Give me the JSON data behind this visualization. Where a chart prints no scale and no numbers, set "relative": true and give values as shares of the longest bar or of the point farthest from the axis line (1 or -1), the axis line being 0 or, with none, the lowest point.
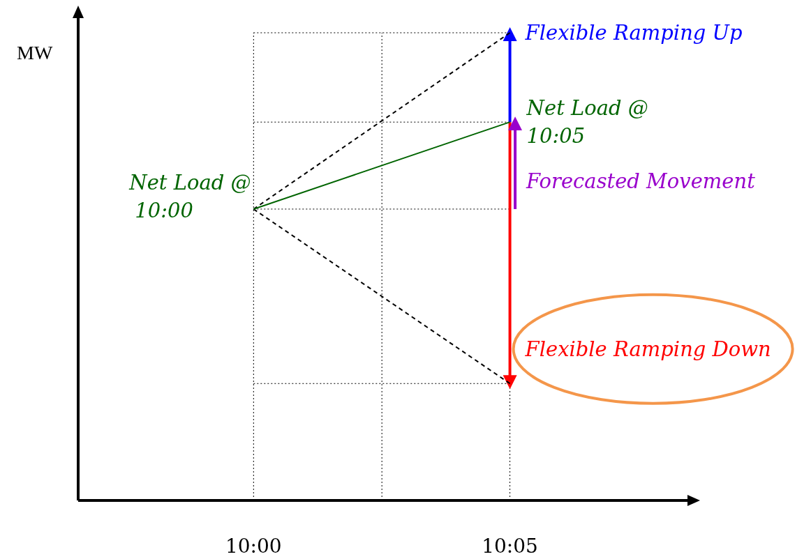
{
  "chart_data": {
    "type": "line",
    "relative": true,
    "ylabel": "MW",
    "tick_labels": "x",
    "grid": "x",
    "ref_lines": [
      {
        "axis": "y",
        "value": 1.0,
        "line_style": "dotted"
      },
      {
        "axis": "y",
        "value": 0.809,
        "line_style": "dotted"
      },
      {
        "axis": "y",
        "value": 0.623,
        "line_style": "dotted"
      },
      {
        "axis": "y",
        "value": 0.25,
        "line_style": "dotted"
      }
    ],
    "xlim": [
      9.943,
      10.141
    ],
    "xticks": [
      {
        "value": 10,
        "label": "10:00"
      },
      {
        "value": 10.0417,
        "label": null
      },
      {
        "value": 10.0833,
        "label": "10:05"
      }
    ],
    "series": [
      {
        "color": "#000000",
        "line_style": "dashed",
        "x": [
          10,
          10.0833
        ],
        "values": [
          0.623,
          1.0
        ]
      },
      {
        "color": "#000000",
        "line_style": "dashed",
        "x": [
          10,
          10.0833
        ],
        "values": [
          0.623,
          0.25
        ]
      },
      {
        "color": "#006400",
        "line_style": "solid",
        "x": [
          10,
          10.0833
        ],
        "values": [
          0.623,
          0.809
        ]
      },
      {
        "name": "Flexible Ramping Up",
        "color": "#0000ff",
        "line_style": "solid",
        "x": [
          10.0833,
          10.0833
        ],
        "values": [
          0.809,
          1.0
        ]
      },
      {
        "name": "Flexible Ramping Down",
        "color": "#ff0000",
        "line_style": "solid",
        "x": [
          10.0833,
          10.0833
        ],
        "values": [
          0.809,
          0.25
        ]
      },
      {
        "name": "Forecasted Movement",
        "color": "#9900cc",
        "line_style": "solid",
        "x": [
          10.085,
          10.085
        ],
        "values": [
          0.623,
          0.809
        ]
      }
    ],
    "annotations": [
      {
        "text": "Net Load @ 10:00",
        "x": 10,
        "y": 0.623
      },
      {
        "text": "Net Load @ 10:05",
        "x": 10.0833,
        "y": 0.809
      }
    ]
  }
}
